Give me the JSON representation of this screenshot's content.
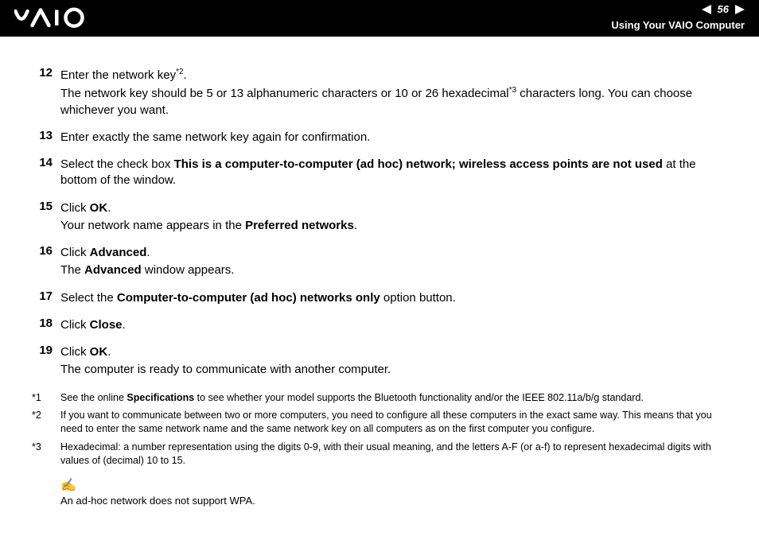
{
  "header": {
    "page_number": "56",
    "title": "Using Your VAIO Computer",
    "logo_letters": "VAIO"
  },
  "steps": [
    {
      "num": "12",
      "lines": [
        {
          "segments": [
            {
              "t": "Enter the network key"
            },
            {
              "sup": "*2"
            },
            {
              "t": "."
            }
          ]
        },
        {
          "segments": [
            {
              "t": "The network key should be 5 or 13 alphanumeric characters or 10 or 26 hexadecimal"
            },
            {
              "sup": "*3"
            },
            {
              "t": " characters long. You can choose whichever you want."
            }
          ]
        }
      ]
    },
    {
      "num": "13",
      "lines": [
        {
          "segments": [
            {
              "t": "Enter exactly the same network key again for confirmation."
            }
          ]
        }
      ]
    },
    {
      "num": "14",
      "lines": [
        {
          "segments": [
            {
              "t": "Select the check box "
            },
            {
              "b": "This is a computer-to-computer (ad hoc) network; wireless access points are not used"
            },
            {
              "t": " at the bottom of the window."
            }
          ]
        }
      ]
    },
    {
      "num": "15",
      "lines": [
        {
          "segments": [
            {
              "t": "Click "
            },
            {
              "b": "OK"
            },
            {
              "t": "."
            }
          ]
        },
        {
          "segments": [
            {
              "t": "Your network name appears in the "
            },
            {
              "b": "Preferred networks"
            },
            {
              "t": "."
            }
          ]
        }
      ]
    },
    {
      "num": "16",
      "lines": [
        {
          "segments": [
            {
              "t": "Click "
            },
            {
              "b": "Advanced"
            },
            {
              "t": "."
            }
          ]
        },
        {
          "segments": [
            {
              "t": "The "
            },
            {
              "b": "Advanced"
            },
            {
              "t": " window appears."
            }
          ]
        }
      ]
    },
    {
      "num": "17",
      "lines": [
        {
          "segments": [
            {
              "t": "Select the "
            },
            {
              "b": "Computer-to-computer (ad hoc) networks only"
            },
            {
              "t": " option button."
            }
          ]
        }
      ]
    },
    {
      "num": "18",
      "lines": [
        {
          "segments": [
            {
              "t": "Click "
            },
            {
              "b": "Close"
            },
            {
              "t": "."
            }
          ]
        }
      ]
    },
    {
      "num": "19",
      "lines": [
        {
          "segments": [
            {
              "t": "Click "
            },
            {
              "b": "OK"
            },
            {
              "t": "."
            }
          ]
        },
        {
          "segments": [
            {
              "t": "The computer is ready to communicate with another computer."
            }
          ]
        }
      ]
    }
  ],
  "footnotes": [
    {
      "mark": "*1",
      "segments": [
        {
          "t": "See the online "
        },
        {
          "b": "Specifications"
        },
        {
          "t": " to see whether your model supports the Bluetooth functionality and/or the IEEE 802.11a/b/g standard."
        }
      ]
    },
    {
      "mark": "*2",
      "segments": [
        {
          "t": "If you want to communicate between two or more computers, you need to configure all these computers in the exact same way. This means that you need to enter the same network name and the same network key on all computers as on the first computer you configure."
        }
      ]
    },
    {
      "mark": "*3",
      "segments": [
        {
          "t": "Hexadecimal: a number representation using the digits 0-9, with their usual meaning, and the letters A-F (or a-f) to represent hexadecimal digits with values of (decimal) 10 to 15."
        }
      ]
    }
  ],
  "note": {
    "icon": "✍",
    "text": "An ad-hoc network does not support WPA."
  },
  "colors": {
    "header_bg": "#000000",
    "header_fg": "#ffffff",
    "body_fg": "#000000",
    "body_bg": "#ffffff"
  }
}
